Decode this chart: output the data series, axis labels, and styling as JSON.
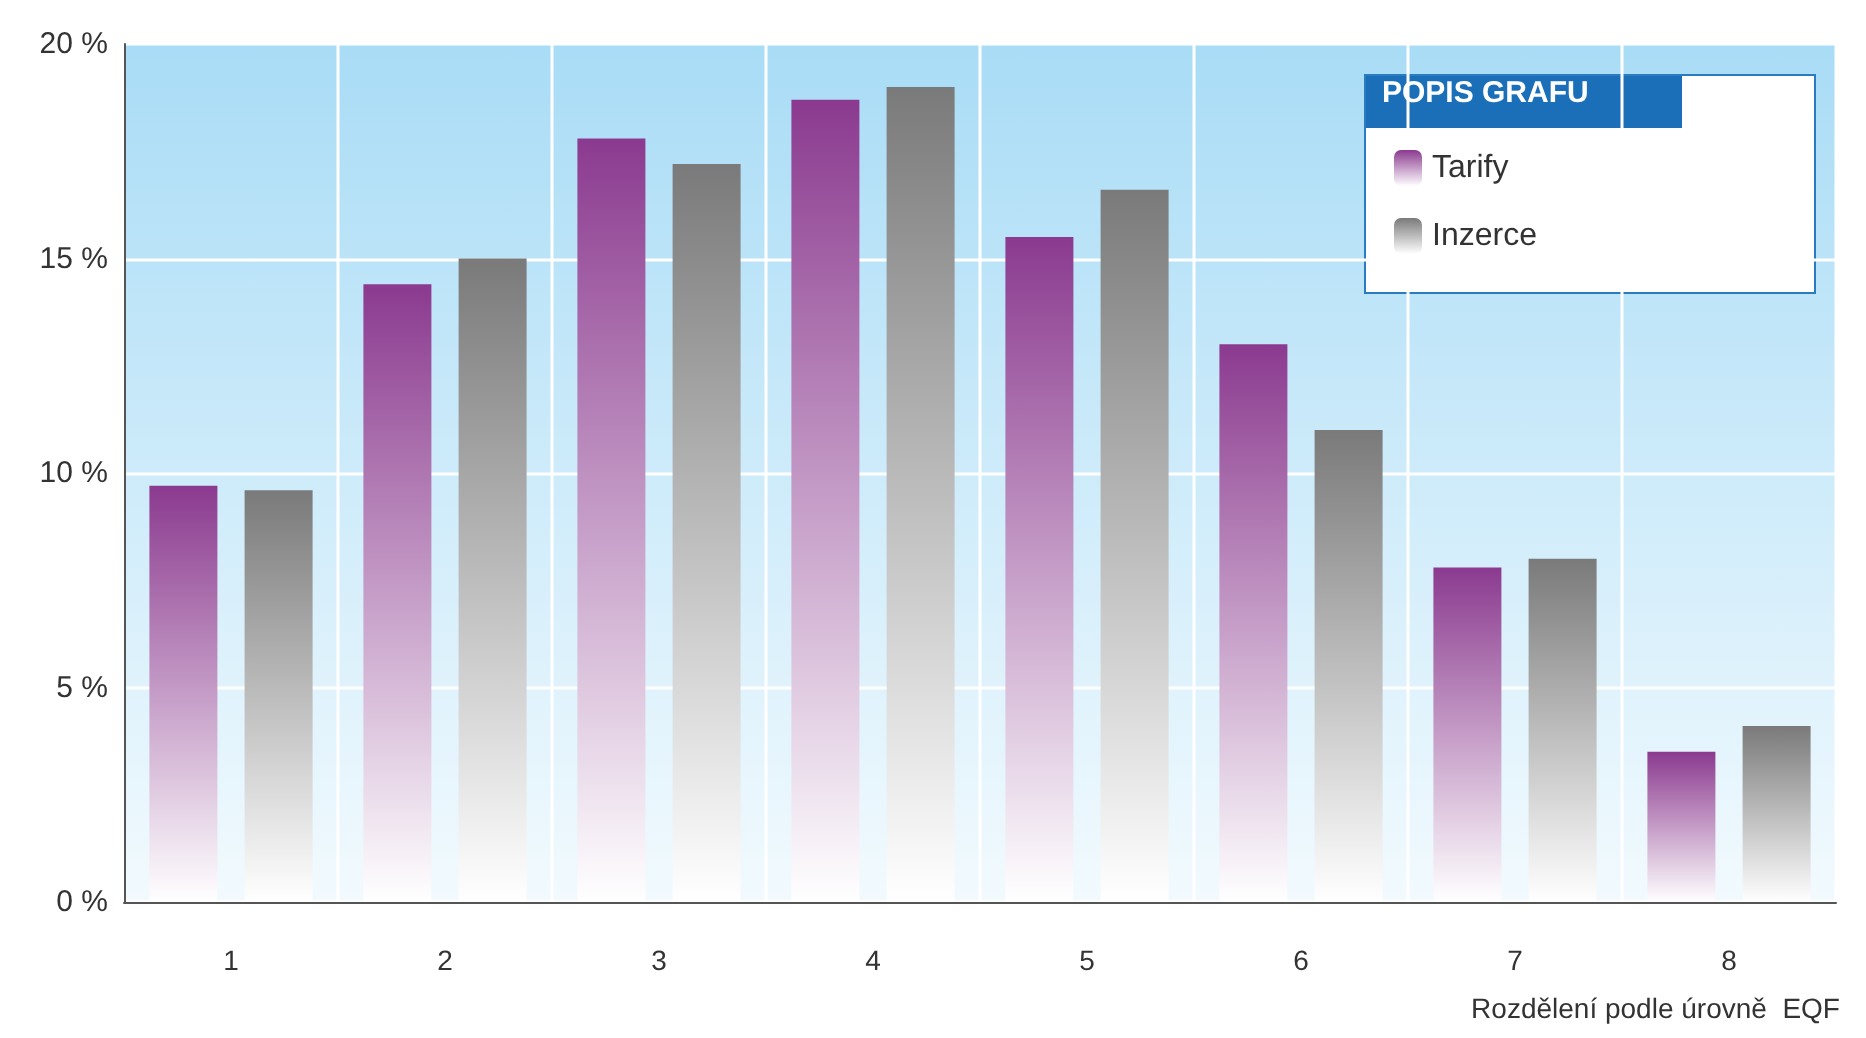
{
  "chart_data": {
    "type": "bar",
    "xlabel": "Rozdělení podle úrovně  EQF",
    "legend_title": "POPIS GRAFU",
    "categories": [
      "1",
      "2",
      "3",
      "4",
      "5",
      "6",
      "7",
      "8"
    ],
    "series": [
      {
        "name": "Tarify",
        "color": "#8b3a8f",
        "values": [
          9.7,
          14.4,
          17.8,
          18.7,
          15.5,
          13.0,
          7.8,
          3.5
        ]
      },
      {
        "name": "Inzerce",
        "color": "#7a7a7a",
        "values": [
          9.6,
          15.0,
          17.2,
          19.0,
          16.6,
          11.0,
          8.0,
          4.1
        ]
      }
    ],
    "ylim": [
      0,
      20
    ],
    "yticks": [
      {
        "value": 0,
        "label": "0 %"
      },
      {
        "value": 5,
        "label": "5 %"
      },
      {
        "value": 10,
        "label": "10 %"
      },
      {
        "value": 15,
        "label": "15 %"
      },
      {
        "value": 20,
        "label": "20 %"
      }
    ],
    "grid": true,
    "legend": "top right"
  }
}
